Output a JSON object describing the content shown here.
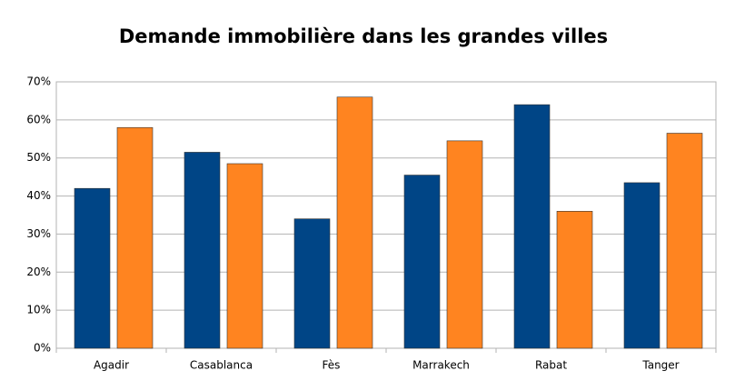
{
  "chart_data": {
    "type": "bar",
    "title": "Demande immobilière dans les grandes villes",
    "categories": [
      "Agadir",
      "Casablanca",
      "Fès",
      "Marrakech",
      "Rabat",
      "Tanger"
    ],
    "series": [
      {
        "color": "#004586",
        "values": [
          42,
          51.5,
          34,
          45.5,
          64,
          43.5
        ]
      },
      {
        "color": "#ff8420",
        "values": [
          58,
          48.5,
          66,
          54.5,
          36,
          56.5
        ]
      }
    ],
    "ylim": [
      0,
      70
    ],
    "yticks": [
      {
        "value": 0,
        "label": "0%"
      },
      {
        "value": 10,
        "label": "10%"
      },
      {
        "value": 20,
        "label": "20%"
      },
      {
        "value": 30,
        "label": "30%"
      },
      {
        "value": 40,
        "label": "40%"
      },
      {
        "value": 50,
        "label": "50%"
      },
      {
        "value": 60,
        "label": "60%"
      },
      {
        "value": 70,
        "label": "70%"
      }
    ],
    "grid": true
  }
}
